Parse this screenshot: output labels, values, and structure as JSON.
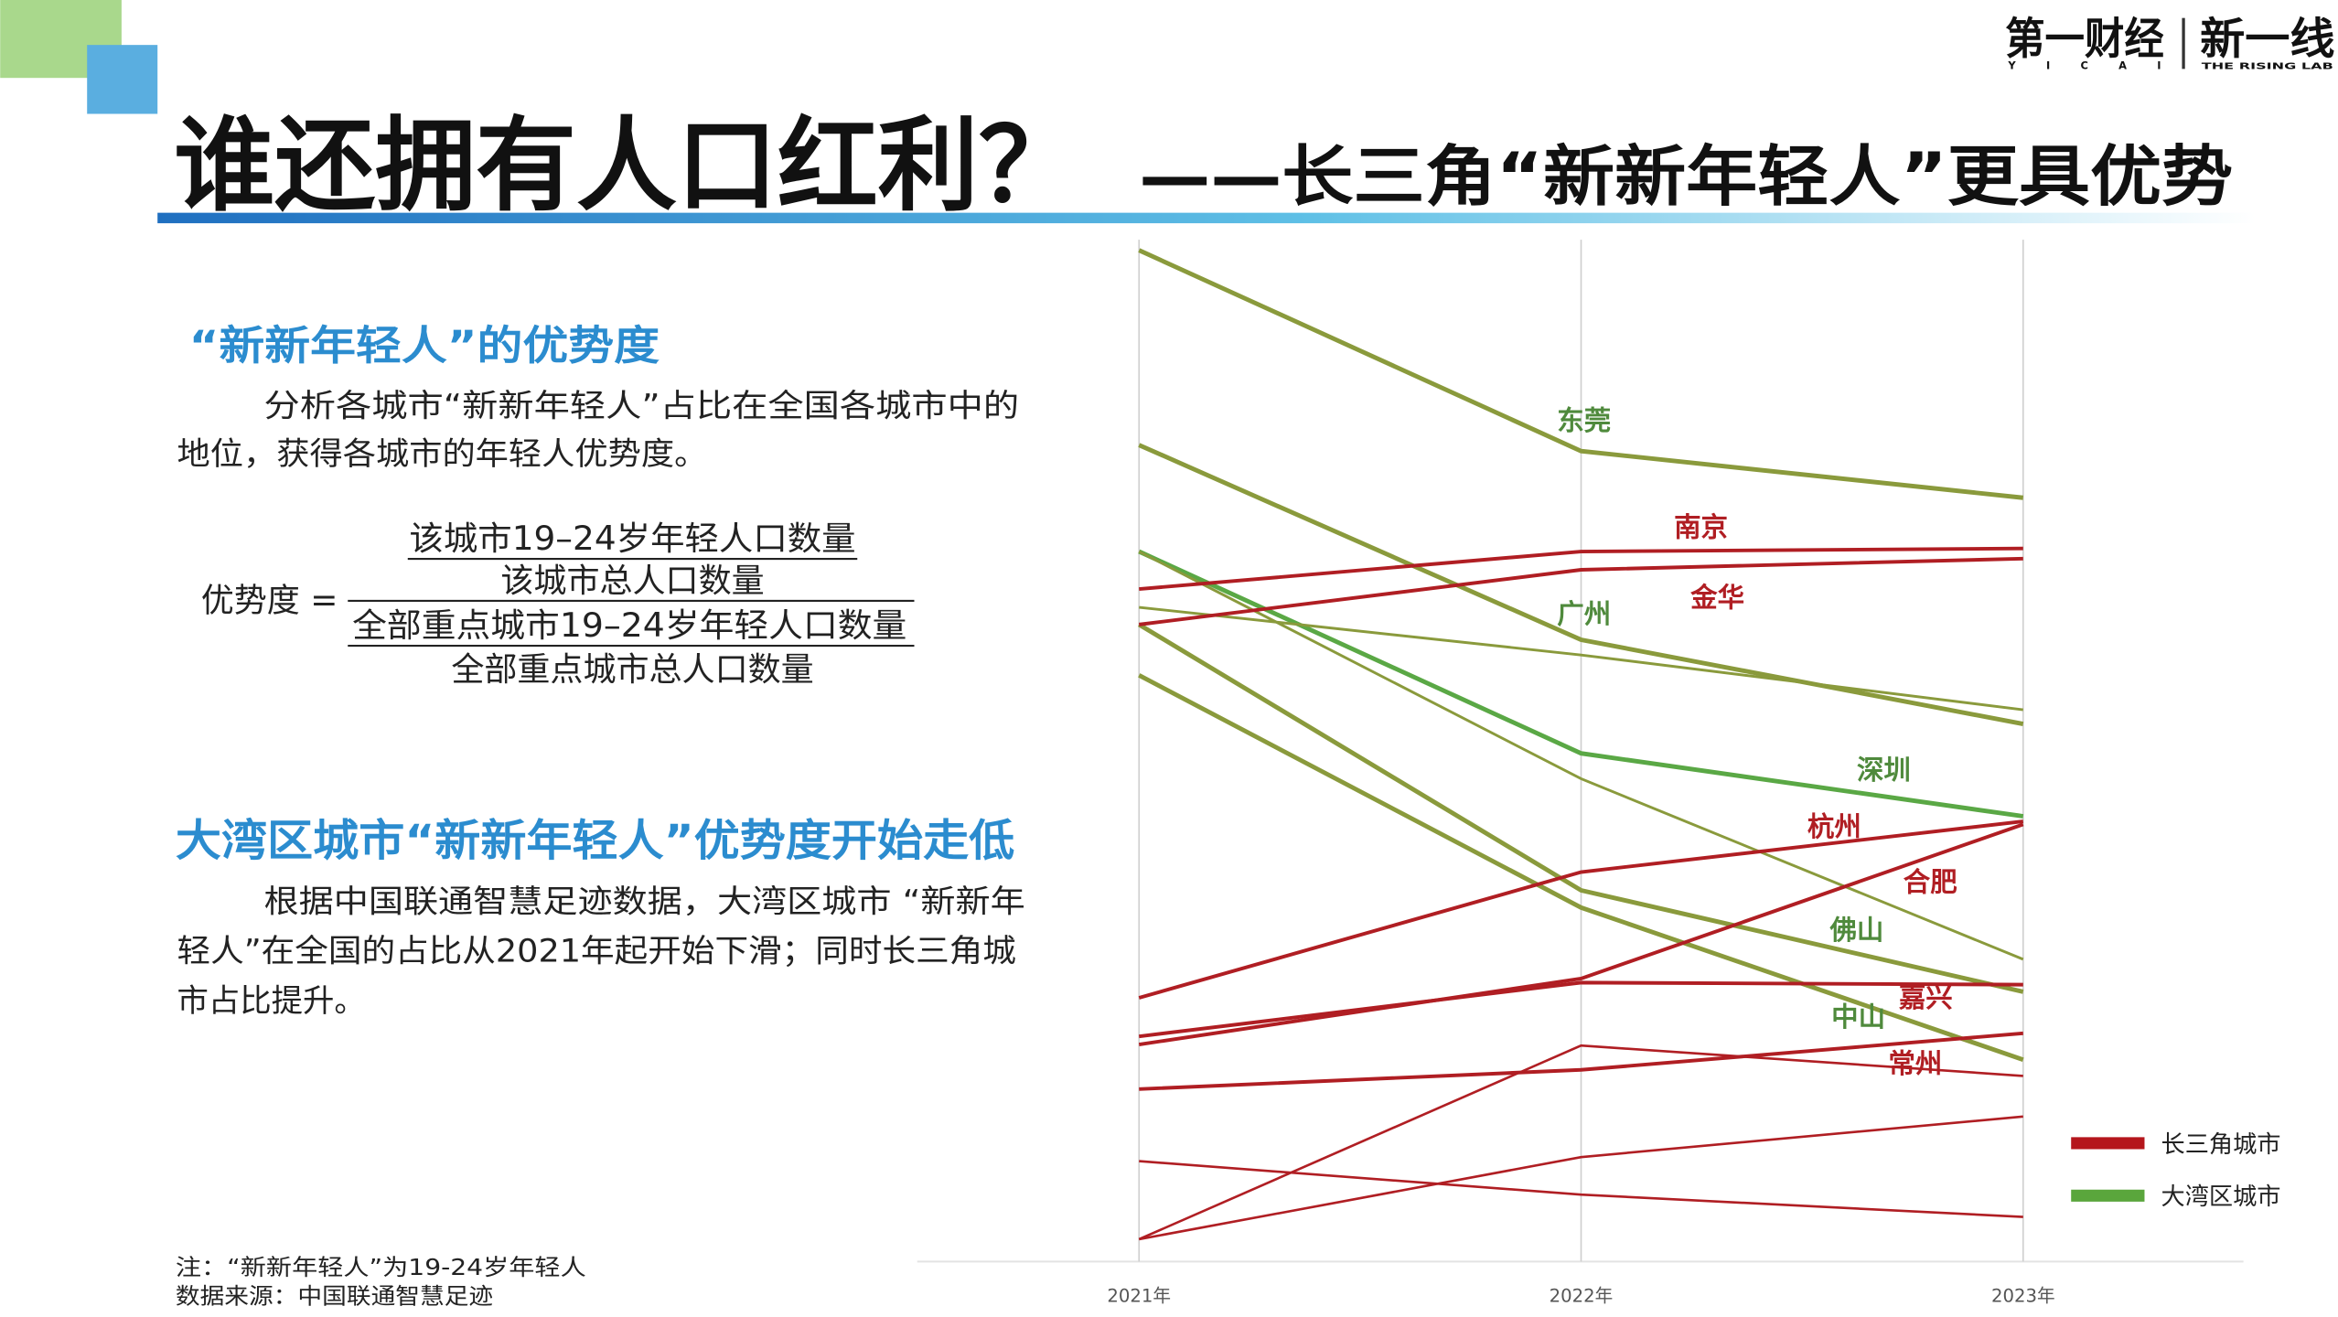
{
  "logo": {
    "yicai": "第一财经",
    "yicai_en": "Y I C A I",
    "rising": "新一线",
    "rising_en": "THE RISING LAB"
  },
  "title": "谁还拥有人口红利？",
  "subtitle": "——长三角“新新年轻人”更具优势",
  "section1": {
    "heading": "“新新年轻人”的优势度",
    "paragraph": [
      "分析各城市“新新年轻人”占比在全国各城市中的",
      "地位，获得各城市的年轻人优势度。"
    ],
    "formula": {
      "lhs": "优势度 =",
      "numerator": [
        "该城市19–24岁年轻人口数量",
        "该城市总人口数量"
      ],
      "denominator": [
        "全部重点城市19–24岁年轻人口数量",
        "全部重点城市总人口数量"
      ]
    }
  },
  "section2": {
    "heading": "大湾区城市“新新年轻人”优势度开始走低",
    "paragraph": [
      "根据中国联通智慧足迹数据，大湾区城市 “新新年",
      "轻人”在全国的占比从2021年起开始下滑；同时长三角城",
      "市占比提升。"
    ]
  },
  "notes": [
    "注：“新新年轻人”为19-24岁年轻人",
    "数据来源：中国联通智慧足迹"
  ],
  "chart_data": {
    "type": "line",
    "categories": [
      "2021年",
      "2022年",
      "2023年"
    ],
    "ylim": [
      0,
      100
    ],
    "series": [
      {
        "name": "东莞",
        "color": "#8a9a3c",
        "values": [
          99.7,
          79.9,
          75.3
        ]
      },
      {
        "name": "广州",
        "color": "#8a9a3c",
        "values": [
          80.5,
          61.3,
          53.0
        ]
      },
      {
        "name": "深圳",
        "color": "#5aa845",
        "values": [
          70.0,
          50.1,
          43.9
        ]
      },
      {
        "name": null,
        "color": "#8a9a3c",
        "values": [
          70.0,
          47.6,
          29.8
        ]
      },
      {
        "name": null,
        "color": "#8a9a3c",
        "values": [
          64.5,
          59.8,
          54.4
        ]
      },
      {
        "name": "佛山",
        "color": "#8a9a3c",
        "values": [
          62.8,
          36.6,
          26.6
        ]
      },
      {
        "name": "中山",
        "color": "#8a9a3c",
        "values": [
          57.8,
          34.9,
          19.9
        ]
      },
      {
        "name": "南京",
        "color": "#b01e23",
        "values": [
          66.3,
          70.0,
          70.3
        ]
      },
      {
        "name": "金华",
        "color": "#b01e23",
        "values": [
          62.8,
          68.2,
          69.3
        ]
      },
      {
        "name": "杭州",
        "color": "#b01e23",
        "values": [
          26.0,
          38.4,
          43.4
        ]
      },
      {
        "name": "合肥",
        "color": "#b01e23",
        "values": [
          21.4,
          27.9,
          43.1
        ]
      },
      {
        "name": "嘉兴",
        "color": "#b01e23",
        "values": [
          22.2,
          27.5,
          27.3
        ]
      },
      {
        "name": "常州",
        "color": "#b01e23",
        "values": [
          17.0,
          18.9,
          22.5
        ]
      },
      {
        "name": null,
        "color": "#b01e23",
        "values": [
          2.2,
          21.3,
          18.3
        ]
      },
      {
        "name": null,
        "color": "#b01e23",
        "values": [
          9.9,
          6.6,
          4.4
        ]
      },
      {
        "name": null,
        "color": "#b01e23",
        "values": [
          2.2,
          10.3,
          14.3
        ]
      }
    ],
    "legend": [
      {
        "name": "长三角城市",
        "color": "#b5161c"
      },
      {
        "name": "大湾区城市",
        "color": "#5aa63c"
      }
    ]
  }
}
